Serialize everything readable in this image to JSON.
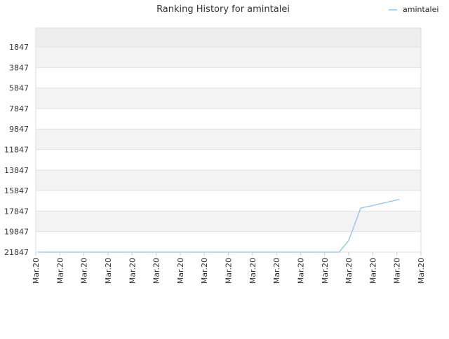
{
  "chart_data": {
    "type": "line",
    "title": "Ranking History for amintalei",
    "xlabel": "",
    "ylabel": "",
    "y_axis_inverted": true,
    "ylim": [
      21847,
      0
    ],
    "y_ticks": [
      "1847",
      "3847",
      "5847",
      "7847",
      "9847",
      "11847",
      "13847",
      "15847",
      "17847",
      "19847",
      "21847"
    ],
    "y_tick_values": [
      1847,
      3847,
      5847,
      7847,
      9847,
      11847,
      13847,
      15847,
      17847,
      19847,
      21847
    ],
    "x_tick_labels": [
      "Mar.20",
      "Mar.20",
      "Mar.20",
      "Mar.20",
      "Mar.20",
      "Mar.20",
      "Mar.20",
      "Mar.20",
      "Mar.20",
      "Mar.20",
      "Mar.20",
      "Mar.20",
      "Mar.20",
      "Mar.20",
      "Mar.20",
      "Mar.20",
      "Mar.20"
    ],
    "grid": true,
    "band_colors": [
      "#eeeeee",
      "#f3f3f3",
      "#ffffff"
    ],
    "legend_position": "top-right",
    "series": [
      {
        "name": "amintalei",
        "color": "#8ec1ee",
        "x": [
          0.1,
          1,
          2,
          3,
          4,
          5,
          6,
          7,
          8,
          9,
          10,
          11,
          12,
          12.6,
          13,
          13.5,
          14,
          15.1
        ],
        "values": [
          21847,
          21847,
          21847,
          21847,
          21847,
          21847,
          21847,
          21847,
          21847,
          21847,
          21847,
          21847,
          21847,
          21847,
          20700,
          17550,
          17300,
          16700
        ]
      }
    ]
  }
}
